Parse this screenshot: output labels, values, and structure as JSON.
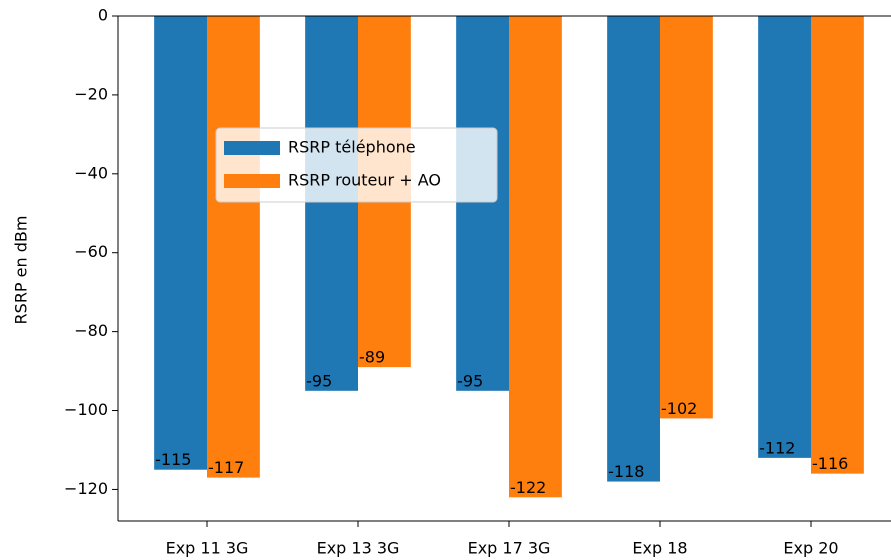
{
  "chart_data": {
    "type": "bar",
    "ylabel": "RSRP en dBm",
    "categories": [
      "Exp 11 3G",
      "Exp 13 3G",
      "Exp 17 3G",
      "Exp 18",
      "Exp 20"
    ],
    "series": [
      {
        "name": "RSRP téléphone",
        "color": "#1f77b4",
        "values": [
          -115,
          -95,
          -95,
          -118,
          -112
        ]
      },
      {
        "name": "RSRP routeur + AO",
        "color": "#ff7f0e",
        "values": [
          -117,
          -89,
          -122,
          -102,
          -116
        ]
      }
    ],
    "ylim": [
      -128,
      0
    ],
    "yticks": [
      {
        "value": 0,
        "label": "0"
      },
      {
        "value": -20,
        "label": "−20"
      },
      {
        "value": -40,
        "label": "−40"
      },
      {
        "value": -60,
        "label": "−60"
      },
      {
        "value": -80,
        "label": "−80"
      },
      {
        "value": -100,
        "label": "−100"
      },
      {
        "value": -120,
        "label": "−120"
      }
    ],
    "legend": "center left"
  }
}
